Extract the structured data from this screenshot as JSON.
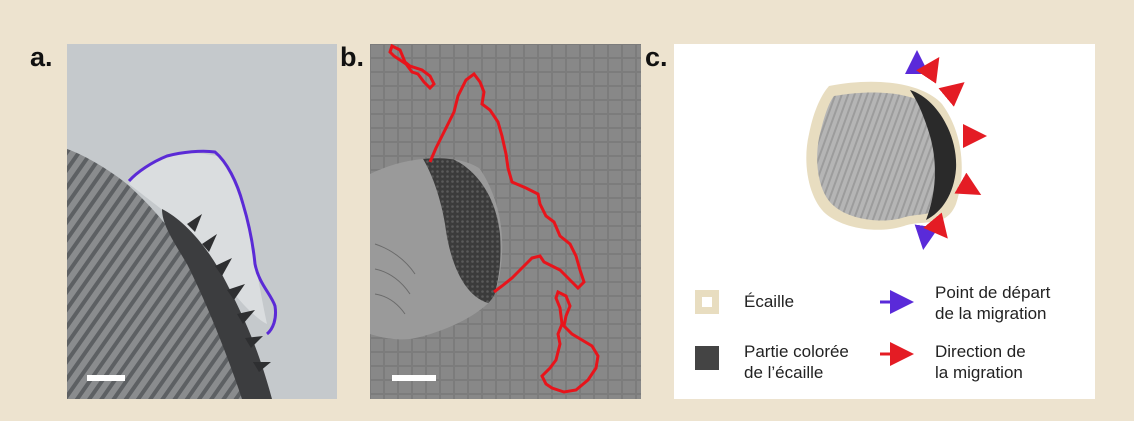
{
  "panels": {
    "a": {
      "label": "a."
    },
    "b": {
      "label": "b."
    },
    "c": {
      "label": "c."
    }
  },
  "legend": {
    "scale": {
      "label": "Écaille"
    },
    "colored": {
      "line1": "Partie colorée",
      "line2": "de l’écaille"
    },
    "start": {
      "line1": "Point de départ",
      "line2": "de la migration"
    },
    "direction": {
      "line1": "Direction de",
      "line2": "la migration"
    }
  },
  "colors": {
    "background": "#ede3cf",
    "scale_rim": "#e8ddc0",
    "colored_part": "#444444",
    "start_arrow": "#5a2ad9",
    "direction_arrow": "#e41c24",
    "outline_a": "#5b2ad6",
    "outline_b": "#e8141b"
  }
}
